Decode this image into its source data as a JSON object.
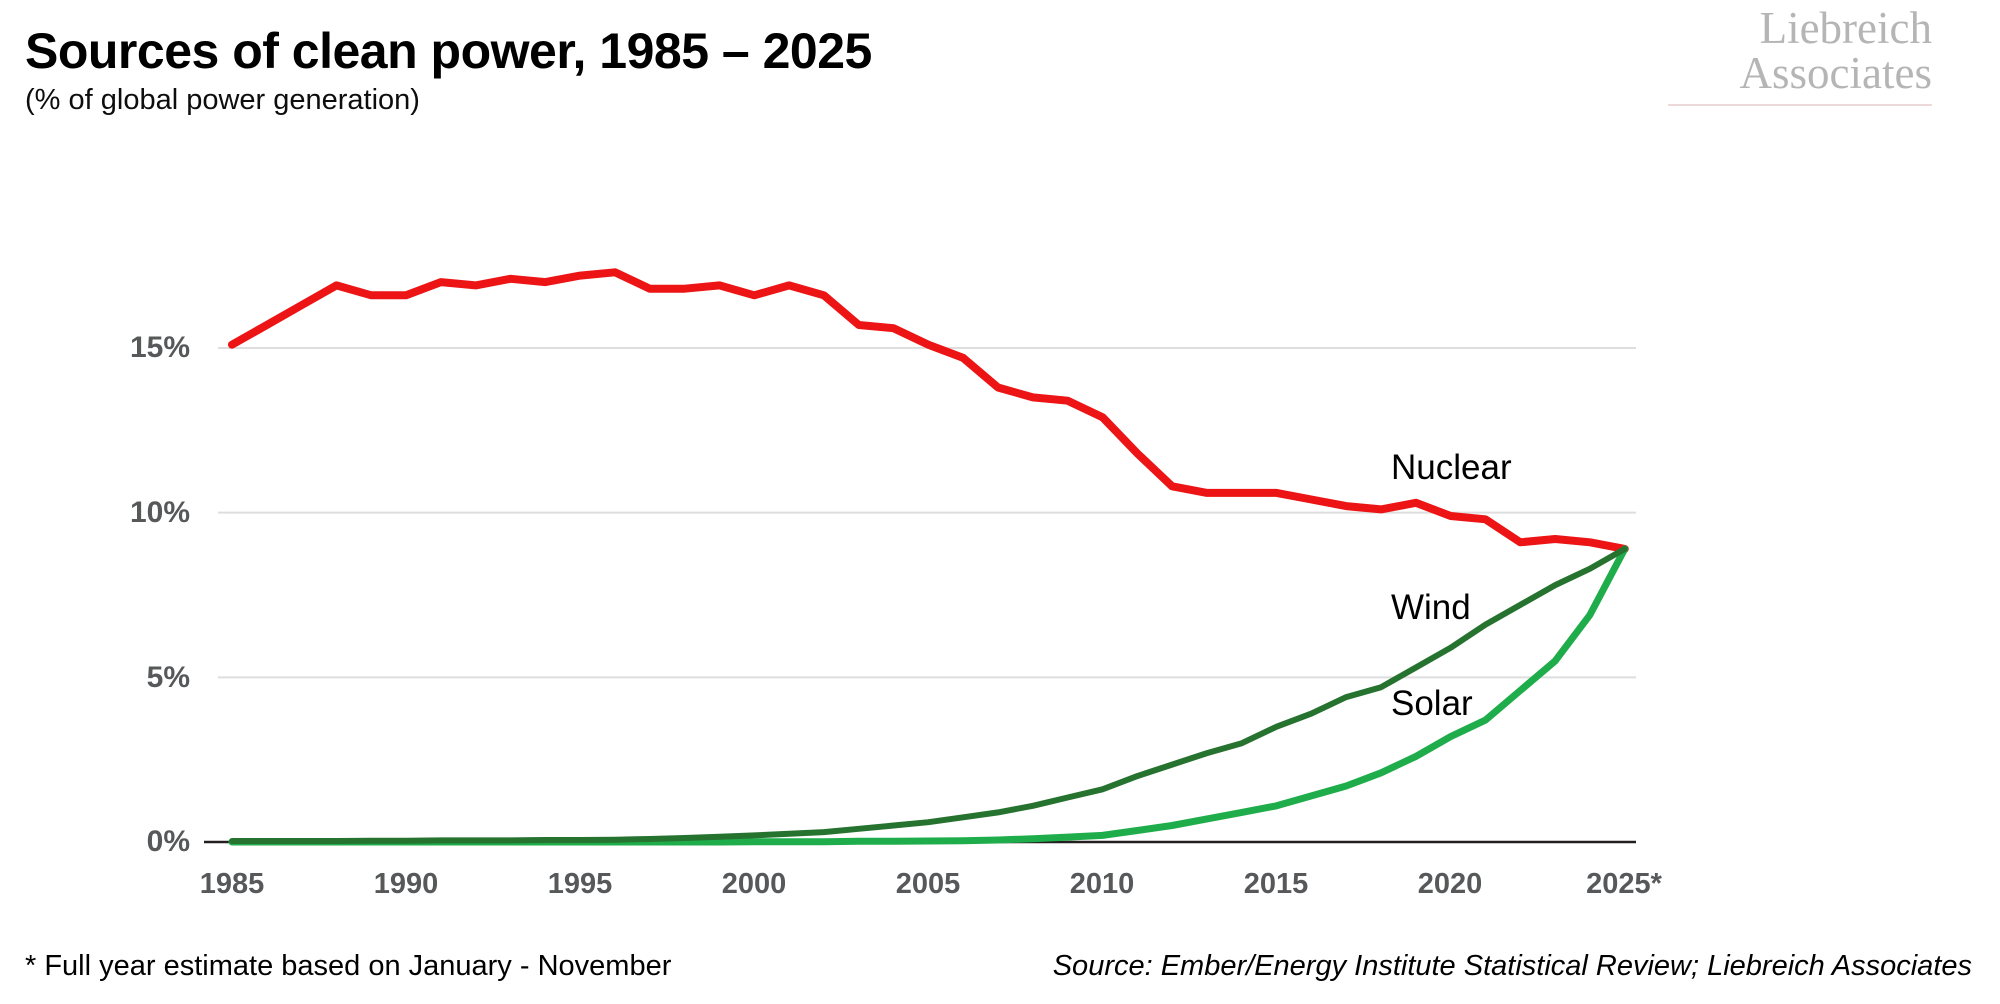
{
  "header": {
    "title": "Sources of clean power, 1985 – 2025",
    "subtitle": "(% of global power generation)",
    "logo": {
      "line1": "Liebreich",
      "line2": "Associates"
    }
  },
  "footer": {
    "note": "* Full year estimate based on January - November",
    "source": "Source: Ember/Energy Institute Statistical Review; Liebreich Associates"
  },
  "colors": {
    "nuclear": "#ec1414",
    "wind": "#26722f",
    "solar": "#1fad4b",
    "grid": "#dedede",
    "axis": "#231f20",
    "tick_text": "#57585a",
    "logo_text": "#b5b5b5",
    "logo_rule": "#ecd9d9"
  },
  "chart_data": {
    "type": "line",
    "title": "Sources of clean power, 1985 – 2025",
    "unit": "% of global power generation",
    "x": [
      1985,
      1986,
      1987,
      1988,
      1989,
      1990,
      1991,
      1992,
      1993,
      1994,
      1995,
      1996,
      1997,
      1998,
      1999,
      2000,
      2001,
      2002,
      2003,
      2004,
      2005,
      2006,
      2007,
      2008,
      2009,
      2010,
      2011,
      2012,
      2013,
      2014,
      2015,
      2016,
      2017,
      2018,
      2019,
      2020,
      2021,
      2022,
      2023,
      2024,
      2025
    ],
    "series": [
      {
        "name": "Nuclear",
        "color": "#ec1414",
        "values": [
          15.1,
          15.7,
          16.3,
          16.9,
          16.6,
          16.6,
          17.0,
          16.9,
          17.1,
          17.0,
          17.2,
          17.3,
          16.8,
          16.8,
          16.9,
          16.6,
          16.9,
          16.6,
          15.7,
          15.6,
          15.1,
          14.7,
          13.8,
          13.5,
          13.4,
          12.9,
          11.8,
          10.8,
          10.6,
          10.6,
          10.6,
          10.4,
          10.2,
          10.1,
          10.3,
          9.9,
          9.8,
          9.1,
          9.2,
          9.1,
          8.9
        ]
      },
      {
        "name": "Wind",
        "color": "#26722f",
        "values": [
          0.03,
          0.03,
          0.03,
          0.03,
          0.04,
          0.04,
          0.05,
          0.05,
          0.05,
          0.06,
          0.06,
          0.07,
          0.09,
          0.12,
          0.16,
          0.2,
          0.25,
          0.3,
          0.4,
          0.5,
          0.6,
          0.75,
          0.9,
          1.1,
          1.35,
          1.6,
          2.0,
          2.35,
          2.7,
          3.0,
          3.5,
          3.9,
          4.4,
          4.7,
          5.3,
          5.9,
          6.6,
          7.2,
          7.8,
          8.3,
          8.9
        ]
      },
      {
        "name": "Solar",
        "color": "#1fad4b",
        "values": [
          0,
          0,
          0,
          0,
          0,
          0,
          0,
          0,
          0,
          0,
          0,
          0,
          0,
          0,
          0,
          0.01,
          0.01,
          0.01,
          0.02,
          0.02,
          0.03,
          0.04,
          0.06,
          0.1,
          0.15,
          0.2,
          0.35,
          0.5,
          0.7,
          0.9,
          1.1,
          1.4,
          1.7,
          2.1,
          2.6,
          3.2,
          3.7,
          4.6,
          5.5,
          6.9,
          8.9
        ]
      }
    ],
    "y_ticks": [
      "15%",
      "10%",
      "5%",
      "0%"
    ],
    "x_ticks": [
      "1985",
      "1990",
      "1995",
      "2000",
      "2005",
      "2010",
      "2015",
      "2020",
      "2025*"
    ],
    "ylim": [
      0,
      18.6
    ],
    "xlim": [
      1985,
      2025
    ],
    "grid": "horizontal",
    "legend": "inline-labels"
  }
}
